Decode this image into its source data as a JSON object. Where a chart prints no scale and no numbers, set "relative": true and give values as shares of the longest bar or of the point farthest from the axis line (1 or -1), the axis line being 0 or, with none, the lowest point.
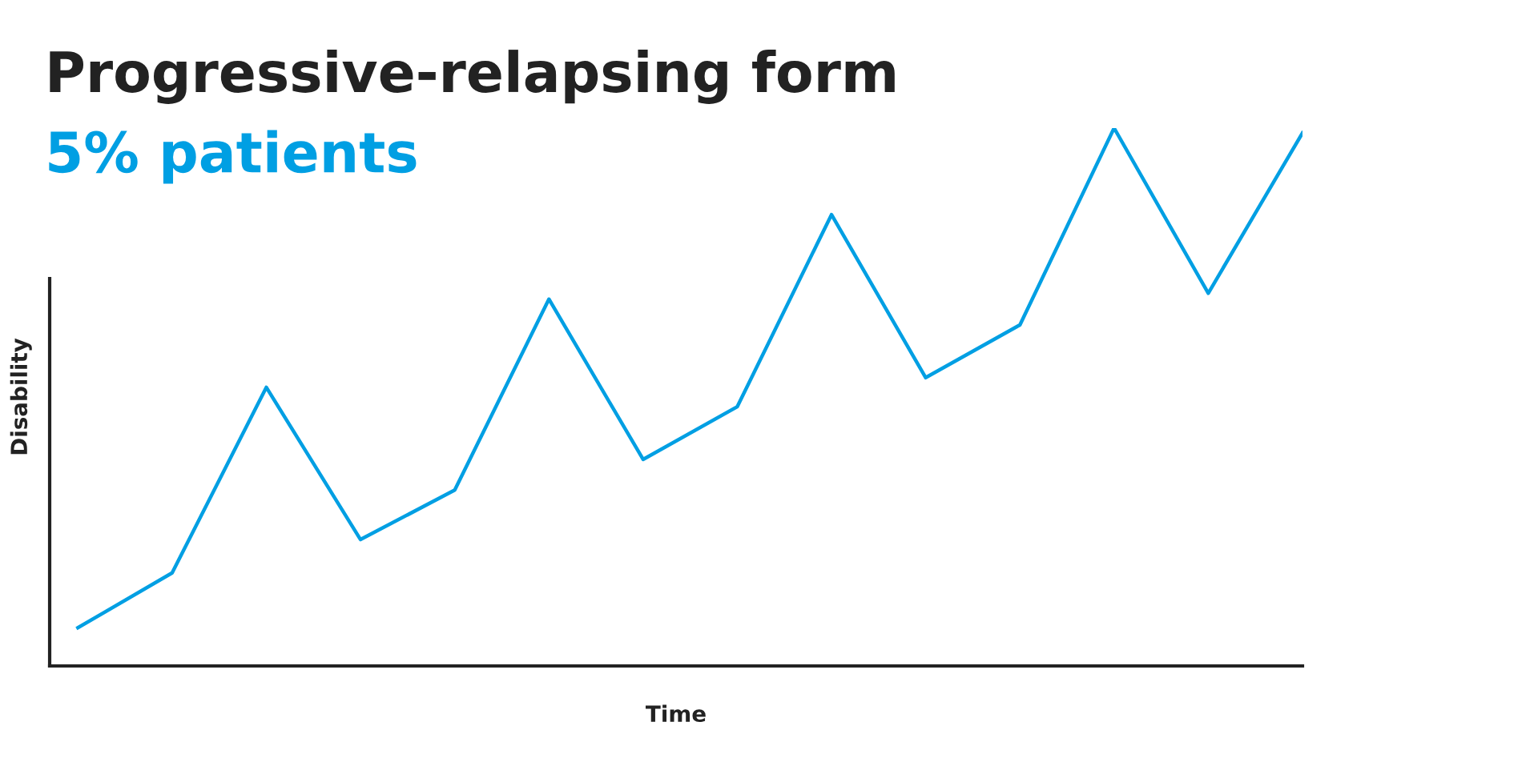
{
  "chart_data": {
    "type": "line",
    "title": "Progressive-relapsing form",
    "subtitle": "5% patients",
    "xlabel": "Time",
    "ylabel": "Disability",
    "relative": true,
    "legend": false,
    "marker": "none",
    "line_style": "solid",
    "categories": [
      null,
      null,
      null,
      null,
      null,
      null,
      null,
      null,
      null,
      null,
      null,
      null,
      null,
      null
    ],
    "series": [
      {
        "color": "#009fe3",
        "values": [
          0.071,
          0.173,
          0.518,
          0.235,
          0.327,
          0.682,
          0.384,
          0.482,
          0.839,
          0.536,
          0.634,
          1.0,
          0.693,
          0.991
        ]
      }
    ]
  }
}
